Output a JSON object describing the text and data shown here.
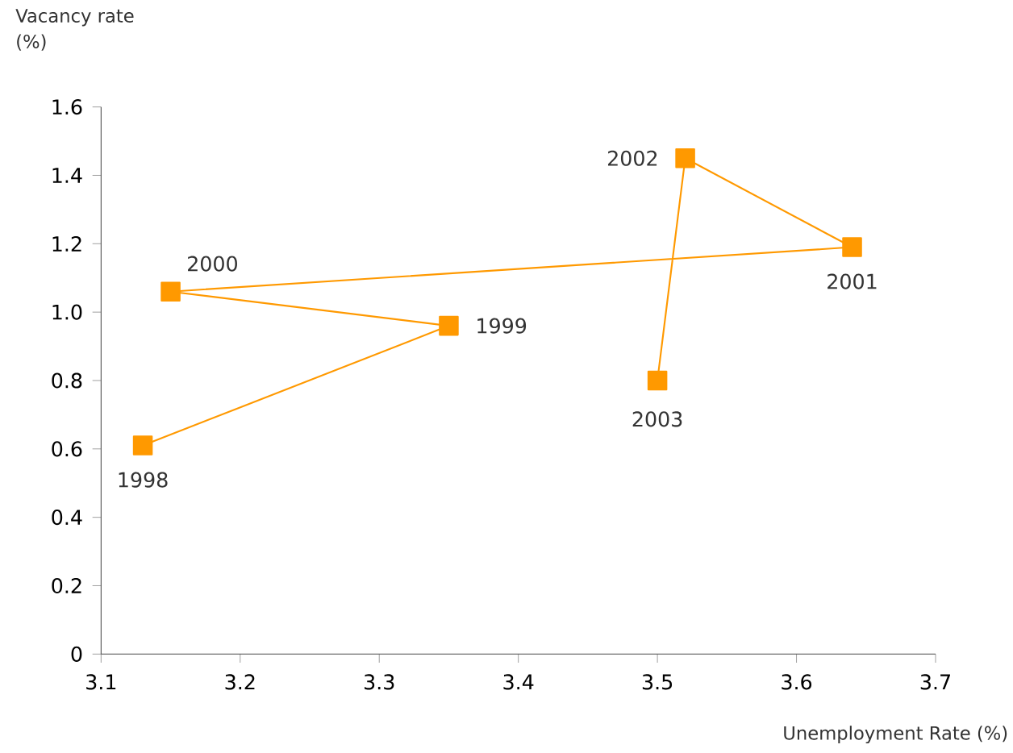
{
  "chart_data": {
    "type": "line",
    "xlabel": "Unemployment Rate (%)",
    "ylabel": "Vacancy rate\n(%)",
    "xlim": [
      3.1,
      3.7
    ],
    "xticks": [
      3.1,
      3.2,
      3.3,
      3.4,
      3.5,
      3.6,
      3.7
    ],
    "ylim": [
      0,
      1.6
    ],
    "yticks": [
      0,
      0.2,
      0.4,
      0.6,
      0.8,
      {
        "value": 1.0,
        "label": "1.0"
      },
      1.2,
      1.4,
      1.6
    ],
    "grid": false,
    "marker": "square",
    "line_style": "solid",
    "series": [
      {
        "color": "#ff9900",
        "x": [
          3.13,
          3.35,
          3.15,
          3.64,
          3.52,
          3.5
        ],
        "values": [
          0.61,
          0.96,
          1.06,
          1.19,
          1.45,
          0.8
        ]
      }
    ],
    "annotations": [
      {
        "text": "1998",
        "x": 3.13,
        "y": 0.61
      },
      {
        "text": "1999",
        "x": 3.35,
        "y": 0.96
      },
      {
        "text": "2000",
        "x": 3.15,
        "y": 1.06
      },
      {
        "text": "2001",
        "x": 3.64,
        "y": 1.19
      },
      {
        "text": "2002",
        "x": 3.52,
        "y": 1.45
      },
      {
        "text": "2003",
        "x": 3.5,
        "y": 0.8
      }
    ]
  }
}
